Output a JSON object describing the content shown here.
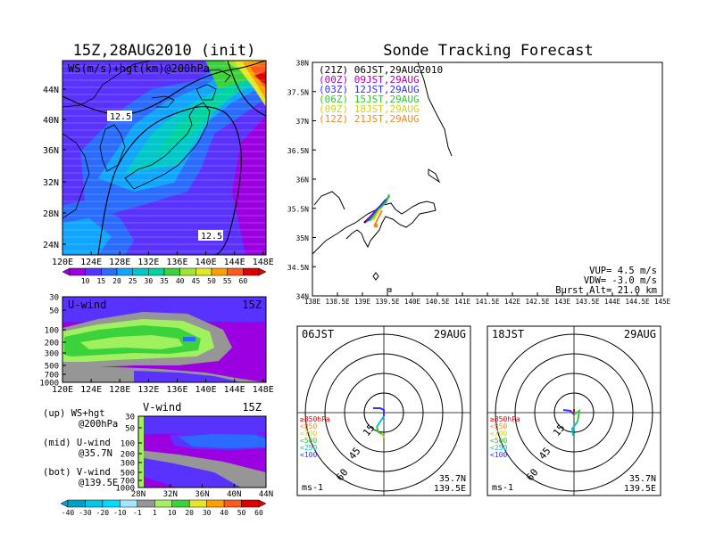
{
  "left_title": "15Z,28AUG2010 (init)",
  "right_title": "Sonde Tracking Forecast",
  "upper_panel": {
    "label": "WS(m/s)+hgt(km)@200hPa",
    "lat_ticks": [
      "44N",
      "40N",
      "36N",
      "32N",
      "28N",
      "24N"
    ],
    "lon_ticks": [
      "120E",
      "124E",
      "128E",
      "132E",
      "136E",
      "140E",
      "144E",
      "148E"
    ],
    "contour_labels": [
      "12.5",
      "12.5"
    ],
    "colorbar": {
      "labels": [
        "10",
        "15",
        "20",
        "25",
        "30",
        "35",
        "40",
        "45",
        "50",
        "55",
        "60"
      ],
      "colors": [
        "#9b00e0",
        "#5a32ff",
        "#2a6cff",
        "#10a5ff",
        "#00c8c8",
        "#00d2a0",
        "#3cd23c",
        "#a0e632",
        "#e6e628",
        "#ffa000",
        "#ff5a1e",
        "#e10000"
      ]
    }
  },
  "u_panel": {
    "label": "U-wind",
    "time": "15Z",
    "p_ticks": [
      "30",
      "50",
      "100",
      "200",
      "300",
      "500",
      "700",
      "1000"
    ],
    "lon_ticks": [
      "120E",
      "124E",
      "128E",
      "132E",
      "136E",
      "140E",
      "144E",
      "148E"
    ]
  },
  "v_panel": {
    "label": "V-wind",
    "time": "15Z",
    "p_ticks": [
      "30",
      "50",
      "100",
      "200",
      "300",
      "500",
      "700",
      "1000"
    ],
    "lat_ticks": [
      "28N",
      "32N",
      "36N",
      "40N",
      "44N"
    ]
  },
  "legend_text": {
    "up": [
      "(up) WS+hgt",
      "@200hPa"
    ],
    "mid": [
      "(mid) U-wind",
      "@35.7N"
    ],
    "bot": [
      "(bot) V-wind",
      "@139.5E"
    ]
  },
  "bottom_colorbar": {
    "labels": [
      "-40",
      "-30",
      "-20",
      "-10",
      "-1",
      "1",
      "10",
      "20",
      "30",
      "40",
      "50",
      "60"
    ],
    "colors": [
      "#00a0c8",
      "#00c8e6",
      "#00dcff",
      "#a0e6ff",
      "#969696",
      "#a0f060",
      "#3cd23c",
      "#e6e628",
      "#ffa000",
      "#ff5a1e",
      "#e10000"
    ]
  },
  "tracking_map": {
    "legend": [
      {
        "text": "(21Z) 06JST,29AUG2010",
        "color": "#000000"
      },
      {
        "text": "(00Z) 09JST,29AUG",
        "color": "#b400b4"
      },
      {
        "text": "(03Z) 12JST,29AUG",
        "color": "#3232ff"
      },
      {
        "text": "(06Z) 15JST,29AUG",
        "color": "#32c832"
      },
      {
        "text": "(09Z) 18JST,29AUG",
        "color": "#d2d21e"
      },
      {
        "text": "(12Z) 21JST,29AUG",
        "color": "#f08c28"
      }
    ],
    "lat_ticks": [
      "38N",
      "37.5N",
      "37N",
      "36.5N",
      "36N",
      "35.5N",
      "35N",
      "34.5N",
      "34N"
    ],
    "lon_ticks": [
      "138E",
      "138.5E",
      "139E",
      "139.5E",
      "140E",
      "140.5E",
      "141E",
      "141.5E",
      "142E",
      "142.5E",
      "143E",
      "143.5E",
      "144E",
      "144.5E",
      "145E"
    ],
    "params": [
      "VUP= 4.5 m/s",
      "VDW= -3.0 m/s",
      "Burst Alt= 21.0 km"
    ]
  },
  "hodographs": [
    {
      "time": "06JST",
      "date": "29AUG",
      "loc1": "35.7N",
      "loc2": "139.5E",
      "unit": "ms-1",
      "ring_labels": [
        "15",
        "45",
        "60"
      ],
      "levels": [
        {
          "text": "≥850hPa",
          "color": "#e10000"
        },
        {
          "text": "<850",
          "color": "#f08c28"
        },
        {
          "text": "<700",
          "color": "#d2d21e"
        },
        {
          "text": "<500",
          "color": "#32c832"
        },
        {
          "text": "<250",
          "color": "#00c8c8"
        },
        {
          "text": "<100",
          "color": "#3232ff"
        }
      ]
    },
    {
      "time": "18JST",
      "date": "29AUG",
      "loc1": "35.7N",
      "loc2": "139.5E",
      "unit": "ms-1",
      "ring_labels": [
        "15",
        "45",
        "60"
      ],
      "levels": [
        {
          "text": "≥850hPa",
          "color": "#e10000"
        },
        {
          "text": "<850",
          "color": "#f08c28"
        },
        {
          "text": "<700",
          "color": "#d2d21e"
        },
        {
          "text": "<500",
          "color": "#32c832"
        },
        {
          "text": "<250",
          "color": "#00c8c8"
        },
        {
          "text": "<100",
          "color": "#3232ff"
        }
      ]
    }
  ]
}
